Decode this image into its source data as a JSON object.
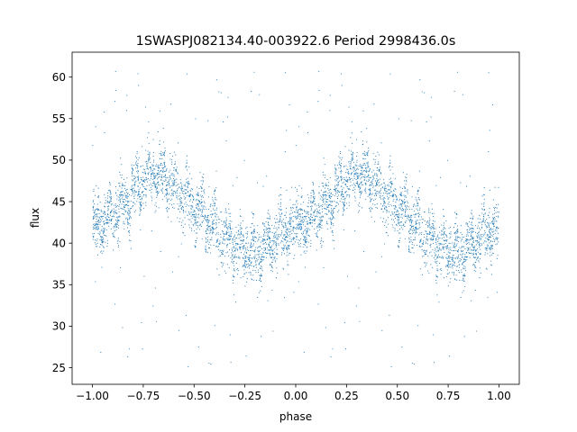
{
  "chart_data": {
    "type": "scatter",
    "title": "1SWASPJ082134.40-003922.6 Period 2998436.0s",
    "xlabel": "phase",
    "ylabel": "flux",
    "xlim": [
      -1.1,
      1.1
    ],
    "ylim": [
      23,
      63
    ],
    "xticks": [
      -1.0,
      -0.75,
      -0.5,
      -0.25,
      0.0,
      0.25,
      0.5,
      0.75,
      1.0
    ],
    "xtick_labels": [
      "−1.00",
      "−0.75",
      "−0.50",
      "−0.25",
      "0.00",
      "0.25",
      "0.50",
      "0.75",
      "1.00"
    ],
    "yticks": [
      25,
      30,
      35,
      40,
      45,
      50,
      55,
      60
    ],
    "ytick_labels": [
      "25",
      "30",
      "35",
      "40",
      "45",
      "50",
      "55",
      "60"
    ],
    "grid": false,
    "legend": "none",
    "marker_color": "#1f77b4",
    "phase_range": [
      -1.0,
      1.0
    ],
    "trend": {
      "phase": [
        0.0,
        0.05,
        0.1,
        0.15,
        0.2,
        0.25,
        0.3,
        0.35,
        0.4,
        0.45,
        0.5,
        0.55,
        0.6,
        0.65,
        0.7,
        0.75,
        0.8,
        0.85,
        0.9,
        0.95,
        1.0
      ],
      "flux": [
        41.5,
        42.5,
        43.5,
        44.5,
        46.0,
        47.5,
        48.5,
        48.0,
        46.5,
        45.5,
        44.0,
        43.0,
        42.0,
        41.0,
        40.0,
        39.0,
        38.5,
        39.5,
        40.5,
        41.5,
        41.5
      ]
    },
    "scatter_sd": 1.6,
    "outlier_range": [
      25,
      61.5
    ],
    "points_per_cycle": 2400
  }
}
